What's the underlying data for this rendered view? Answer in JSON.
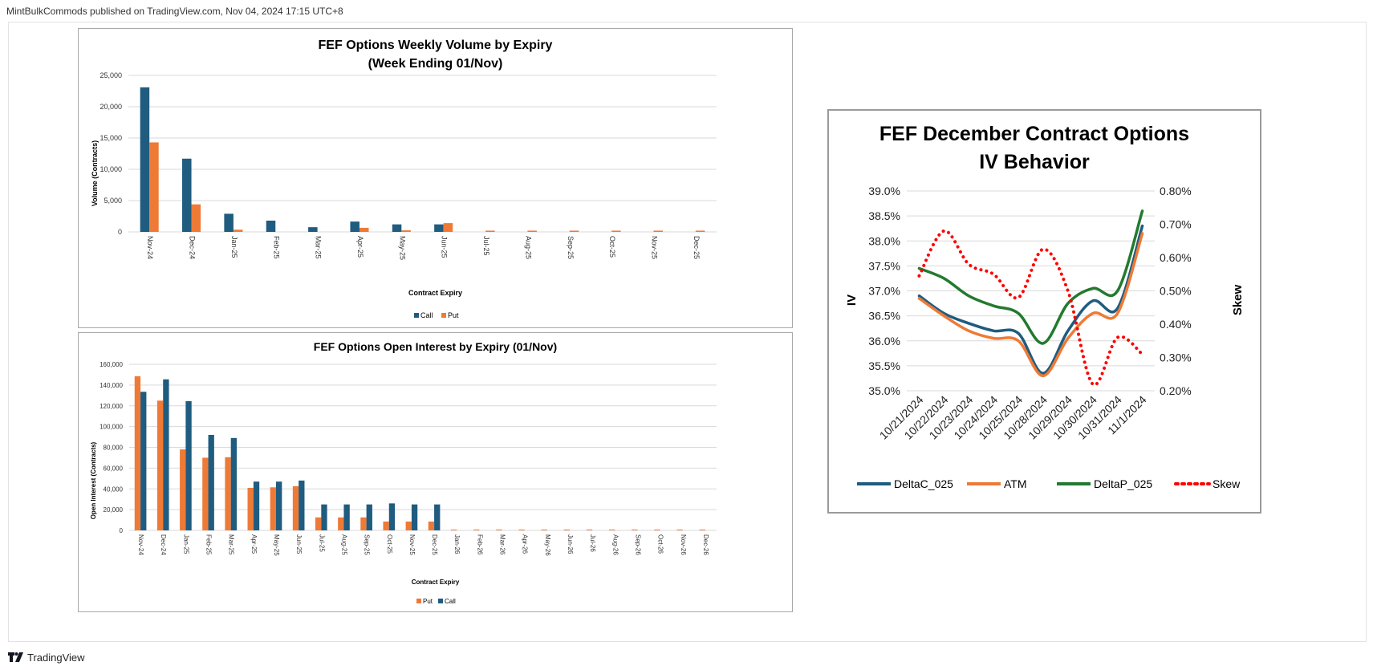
{
  "header": {
    "text": "MintBulkCommods published on TradingView.com, Nov 04, 2024 17:15 UTC+8"
  },
  "footer": {
    "brand": "TradingView",
    "logo_icon": "tradingview-logo-icon"
  },
  "colors": {
    "call": "#1f5c7f",
    "put": "#ee7a36",
    "delta_c": "#1f5c7f",
    "atm": "#ee7a36",
    "delta_p": "#237a2e",
    "skew": "#ff0000",
    "grid": "#d9d9d9"
  },
  "chart_data": [
    {
      "id": "volume",
      "type": "bar",
      "title": "FEF Options Weekly Volume by Expiry",
      "subtitle": "(Week Ending 01/Nov)",
      "xlabel": "Contract Expiry",
      "ylabel": "Volume (Contracts)",
      "ylim": [
        0,
        25000
      ],
      "yticks": [
        "0",
        "5,000",
        "10,000",
        "15,000",
        "20,000",
        "25,000"
      ],
      "categories": [
        "Nov-24",
        "Dec-24",
        "Jan-25",
        "Feb-25",
        "Mar-25",
        "Apr-25",
        "May-25",
        "Jun-25",
        "Jul-25",
        "Aug-25",
        "Sep-25",
        "Oct-25",
        "Nov-25",
        "Dec-25"
      ],
      "series": [
        {
          "name": "Call",
          "values": [
            23100,
            11700,
            2900,
            1800,
            750,
            1650,
            1200,
            1200,
            0,
            0,
            0,
            0,
            0,
            0
          ]
        },
        {
          "name": "Put",
          "values": [
            14300,
            4400,
            350,
            0,
            0,
            650,
            250,
            1400,
            200,
            200,
            200,
            200,
            200,
            200
          ]
        }
      ],
      "legend": [
        "Call",
        "Put"
      ],
      "legend_position": "bottom",
      "grid": true
    },
    {
      "id": "open_interest",
      "type": "bar",
      "title": "FEF Options Open Interest by Expiry (01/Nov)",
      "xlabel": "Contract Expiry",
      "ylabel": "Open Interest (Contracts)",
      "ylim": [
        0,
        160000
      ],
      "yticks": [
        "0",
        "20,000",
        "40,000",
        "60,000",
        "80,000",
        "100,000",
        "120,000",
        "140,000",
        "160,000"
      ],
      "categories": [
        "Nov-24",
        "Dec-24",
        "Jan-25",
        "Feb-25",
        "Mar-25",
        "Apr-25",
        "May-25",
        "Jun-25",
        "Jul-25",
        "Aug-25",
        "Sep-25",
        "Oct-25",
        "Nov-25",
        "Dec-25",
        "Jan-26",
        "Feb-26",
        "Mar-26",
        "Apr-26",
        "May-26",
        "Jun-26",
        "Jul-26",
        "Aug-26",
        "Sep-26",
        "Oct-26",
        "Nov-26",
        "Dec-26"
      ],
      "series": [
        {
          "name": "Put",
          "values": [
            148500,
            125000,
            78000,
            70000,
            70500,
            41000,
            41500,
            42500,
            12500,
            12500,
            12500,
            8500,
            8500,
            8500,
            800,
            800,
            800,
            800,
            800,
            800,
            800,
            800,
            800,
            800,
            800,
            800
          ]
        },
        {
          "name": "Call",
          "values": [
            133500,
            145500,
            124500,
            92000,
            89000,
            47000,
            47000,
            48000,
            25000,
            25000,
            25000,
            26000,
            25000,
            25000,
            0,
            0,
            0,
            0,
            0,
            0,
            0,
            0,
            0,
            0,
            0,
            0
          ]
        }
      ],
      "legend": [
        "Put",
        "Call"
      ],
      "legend_position": "bottom",
      "grid": true
    },
    {
      "id": "iv_behavior",
      "type": "line",
      "title": "FEF December Contract Options",
      "subtitle": "IV Behavior",
      "ylabel": "IV",
      "y2label": "Skew",
      "ylim": [
        35.0,
        39.0
      ],
      "y2lim": [
        0.2,
        0.8
      ],
      "yticks": [
        "35.0%",
        "35.5%",
        "36.0%",
        "36.5%",
        "37.0%",
        "37.5%",
        "38.0%",
        "38.5%",
        "39.0%"
      ],
      "y2ticks": [
        "0.20%",
        "0.30%",
        "0.40%",
        "0.50%",
        "0.60%",
        "0.70%",
        "0.80%"
      ],
      "categories": [
        "10/21/2024",
        "10/22/2024",
        "10/23/2024",
        "10/24/2024",
        "10/25/2024",
        "10/28/2024",
        "10/29/2024",
        "10/30/2024",
        "10/31/2024",
        "11/1/2024"
      ],
      "series": [
        {
          "name": "DeltaC_025",
          "axis": "left",
          "style": "solid",
          "values": [
            36.9,
            36.55,
            36.35,
            36.2,
            36.15,
            35.35,
            36.2,
            36.8,
            36.65,
            38.3
          ]
        },
        {
          "name": "ATM",
          "axis": "left",
          "style": "solid",
          "values": [
            36.85,
            36.5,
            36.2,
            36.05,
            36.0,
            35.3,
            36.05,
            36.55,
            36.55,
            38.15
          ]
        },
        {
          "name": "DeltaP_025",
          "axis": "left",
          "style": "solid",
          "values": [
            37.45,
            37.25,
            36.9,
            36.7,
            36.55,
            35.95,
            36.75,
            37.05,
            37.0,
            38.6
          ]
        },
        {
          "name": "Skew",
          "axis": "right",
          "style": "dotted",
          "values": [
            0.545,
            0.68,
            0.58,
            0.55,
            0.48,
            0.625,
            0.5,
            0.22,
            0.36,
            0.31
          ]
        }
      ],
      "legend": [
        "DeltaC_025",
        "ATM",
        "DeltaP_025",
        "Skew"
      ],
      "legend_position": "bottom",
      "grid": true
    }
  ]
}
